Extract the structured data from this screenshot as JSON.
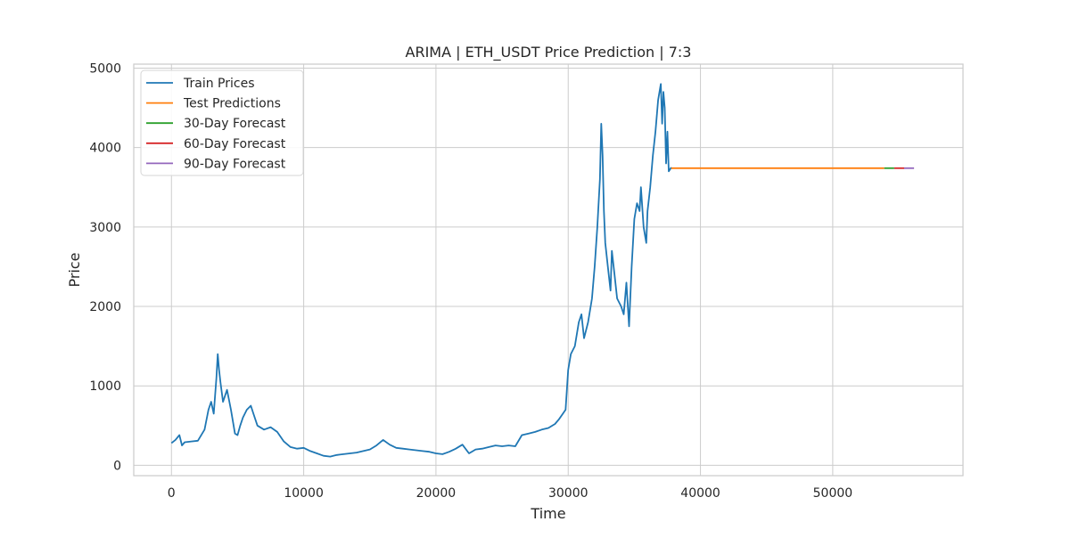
{
  "chart_data": {
    "type": "line",
    "title": "ARIMA | ETH_USDT Price Prediction | 7:3",
    "xlabel": "Time",
    "ylabel": "Price",
    "xlim": [
      -2850,
      59850
    ],
    "ylim": [
      -130,
      5050
    ],
    "xticks": [
      0,
      10000,
      20000,
      30000,
      40000,
      50000
    ],
    "xtick_labels": [
      "0",
      "10000",
      "20000",
      "30000",
      "40000",
      "50000"
    ],
    "yticks": [
      0,
      1000,
      2000,
      3000,
      4000,
      5000
    ],
    "ytick_labels": [
      "0",
      "1000",
      "2000",
      "3000",
      "4000",
      "5000"
    ],
    "grid": true,
    "legend_position": "upper-left",
    "series": [
      {
        "name": "Train Prices",
        "color": "#1f77b4",
        "x": [
          0,
          300,
          600,
          800,
          1000,
          1500,
          2000,
          2500,
          2800,
          3000,
          3200,
          3400,
          3500,
          3600,
          3700,
          3900,
          4200,
          4500,
          4800,
          5000,
          5200,
          5400,
          5700,
          6000,
          6200,
          6500,
          7000,
          7500,
          8000,
          8500,
          9000,
          9500,
          10000,
          10500,
          11000,
          11500,
          12000,
          12500,
          13000,
          13500,
          14000,
          14500,
          15000,
          15500,
          16000,
          16500,
          17000,
          17500,
          18000,
          18500,
          19000,
          19500,
          20000,
          20500,
          21000,
          21500,
          22000,
          22500,
          23000,
          23500,
          24000,
          24500,
          25000,
          25500,
          26000,
          26500,
          27000,
          27500,
          28000,
          28500,
          29000,
          29300,
          29600,
          29800,
          30000,
          30200,
          30500,
          30800,
          31000,
          31200,
          31500,
          31800,
          32000,
          32200,
          32400,
          32500,
          32600,
          32700,
          32800,
          33000,
          33200,
          33300,
          33500,
          33700,
          34000,
          34200,
          34400,
          34600,
          34800,
          35000,
          35200,
          35400,
          35500,
          35700,
          35900,
          36000,
          36200,
          36400,
          36600,
          36800,
          37000,
          37100,
          37200,
          37300,
          37400,
          37500,
          37600,
          37800
        ],
        "y": [
          280,
          320,
          380,
          250,
          290,
          300,
          310,
          450,
          700,
          800,
          650,
          1100,
          1400,
          1200,
          1050,
          800,
          950,
          700,
          400,
          380,
          500,
          600,
          700,
          750,
          650,
          500,
          450,
          480,
          420,
          300,
          230,
          210,
          220,
          180,
          150,
          120,
          110,
          130,
          140,
          150,
          160,
          180,
          200,
          250,
          320,
          260,
          220,
          210,
          200,
          190,
          180,
          170,
          150,
          140,
          170,
          210,
          260,
          150,
          200,
          210,
          230,
          250,
          240,
          250,
          240,
          380,
          400,
          420,
          450,
          470,
          520,
          580,
          650,
          700,
          1200,
          1400,
          1500,
          1800,
          1900,
          1600,
          1800,
          2100,
          2500,
          3000,
          3600,
          4300,
          3900,
          3200,
          2800,
          2500,
          2200,
          2700,
          2400,
          2100,
          2000,
          1900,
          2300,
          1750,
          2500,
          3100,
          3300,
          3200,
          3500,
          3000,
          2800,
          3200,
          3500,
          3900,
          4200,
          4600,
          4800,
          4300,
          4700,
          4500,
          3800,
          4200,
          3700,
          3750
        ]
      },
      {
        "name": "Test Predictions",
        "color": "#ff7f0e",
        "x": [
          37800,
          53900
        ],
        "y": [
          3740,
          3740
        ]
      },
      {
        "name": "30-Day Forecast",
        "color": "#2ca02c",
        "x": [
          53900,
          54650
        ],
        "y": [
          3740,
          3740
        ]
      },
      {
        "name": "60-Day Forecast",
        "color": "#d62728",
        "x": [
          54650,
          55400
        ],
        "y": [
          3740,
          3740
        ]
      },
      {
        "name": "90-Day Forecast",
        "color": "#9467bd",
        "x": [
          55400,
          56150
        ],
        "y": [
          3740,
          3740
        ]
      }
    ]
  }
}
